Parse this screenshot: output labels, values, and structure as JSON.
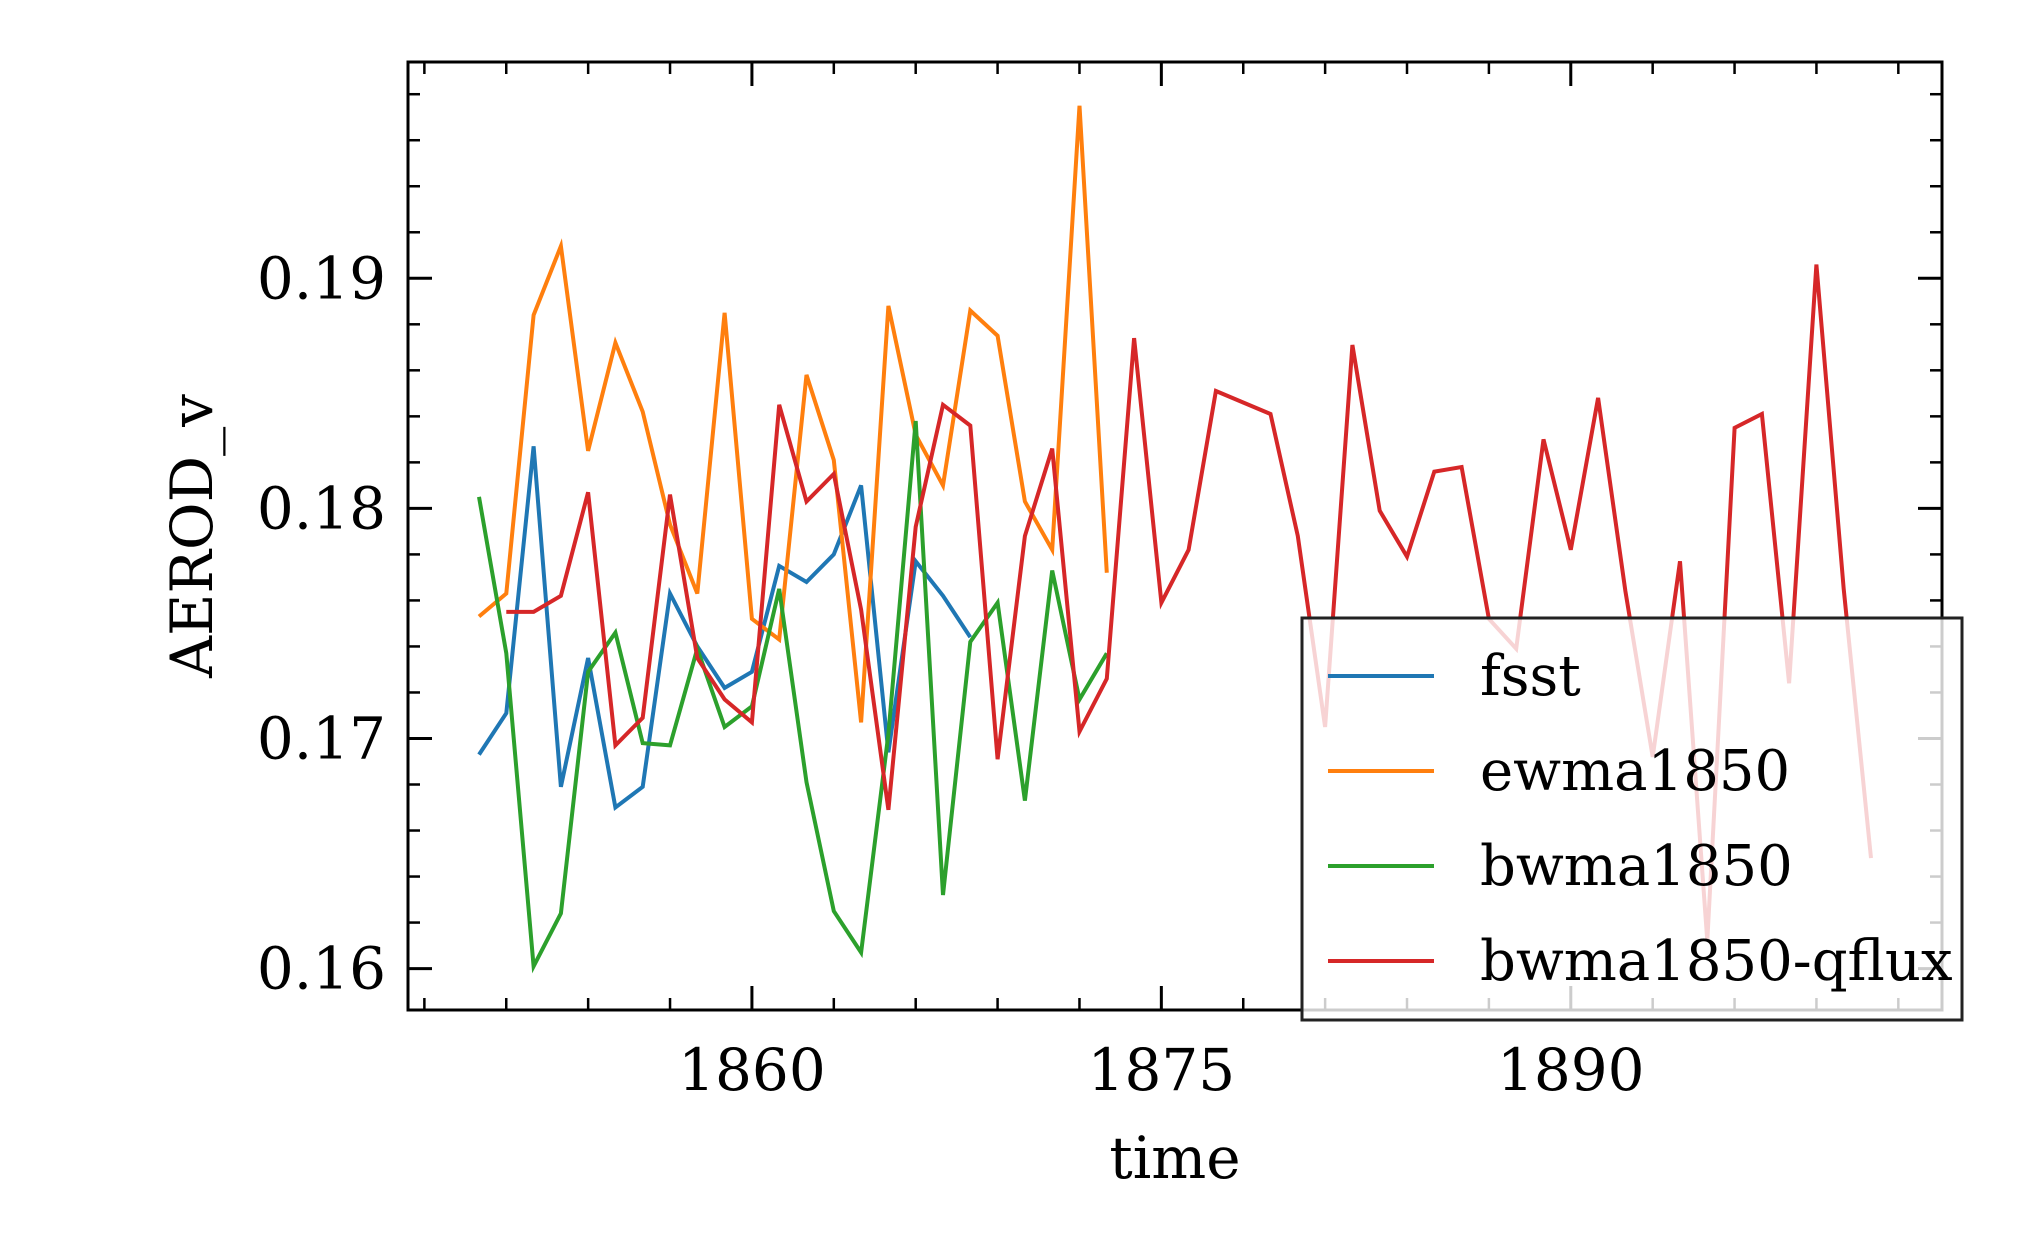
{
  "chart_data": {
    "type": "line",
    "xlabel": "time",
    "ylabel": "AEROD_v",
    "xlim": [
      1847.4,
      1903.6
    ],
    "ylim": [
      0.1582,
      0.1994
    ],
    "xticks": [
      1860,
      1875,
      1890
    ],
    "xtick_labels": [
      "1860",
      "1875",
      "1890"
    ],
    "yticks": [
      0.16,
      0.17,
      0.18,
      0.19
    ],
    "ytick_labels": [
      "0.16",
      "0.17",
      "0.18",
      "0.19"
    ],
    "grid": false,
    "legend_position": "lower-right",
    "series": [
      {
        "name": "fsst",
        "color": "#1f77b4",
        "x": [
          1850,
          1851,
          1852,
          1853,
          1854,
          1855,
          1856,
          1857,
          1858,
          1859,
          1860,
          1861,
          1862,
          1863,
          1864,
          1865,
          1866,
          1867,
          1868
        ],
        "y": [
          0.1693,
          0.1711,
          0.1827,
          0.1679,
          0.1735,
          0.167,
          0.1679,
          0.1763,
          0.174,
          0.1722,
          0.1729,
          0.1775,
          0.1768,
          0.178,
          0.181,
          0.1694,
          0.1777,
          0.1762,
          0.1744
        ]
      },
      {
        "name": "ewma1850",
        "color": "#ff7f0e",
        "x": [
          1850,
          1851,
          1852,
          1853,
          1854,
          1855,
          1856,
          1857,
          1858,
          1859,
          1860,
          1861,
          1862,
          1863,
          1864,
          1865,
          1866,
          1867,
          1868,
          1869,
          1870,
          1871,
          1872,
          1873
        ],
        "y": [
          0.1753,
          0.1763,
          0.1884,
          0.1914,
          0.1825,
          0.1872,
          0.1842,
          0.1793,
          0.1763,
          0.1885,
          0.1752,
          0.1743,
          0.1858,
          0.1821,
          0.1707,
          0.1888,
          0.1832,
          0.181,
          0.1886,
          0.1875,
          0.1803,
          0.1782,
          0.1975,
          0.1772
        ]
      },
      {
        "name": "bwma1850",
        "color": "#2ca02c",
        "x": [
          1850,
          1851,
          1852,
          1853,
          1854,
          1855,
          1856,
          1857,
          1858,
          1859,
          1860,
          1861,
          1862,
          1863,
          1864,
          1865,
          1866,
          1867,
          1868,
          1869,
          1870,
          1871,
          1872,
          1873
        ],
        "y": [
          0.1805,
          0.1737,
          0.1601,
          0.1624,
          0.1729,
          0.1746,
          0.1698,
          0.1697,
          0.1739,
          0.1705,
          0.1714,
          0.1765,
          0.1681,
          0.1625,
          0.1607,
          0.1702,
          0.1838,
          0.1632,
          0.1742,
          0.1759,
          0.1673,
          0.1773,
          0.1717,
          0.1737
        ]
      },
      {
        "name": "bwma1850-qflux",
        "color": "#d62728",
        "x": [
          1851,
          1852,
          1853,
          1854,
          1855,
          1856,
          1857,
          1858,
          1859,
          1860,
          1861,
          1862,
          1863,
          1864,
          1865,
          1866,
          1867,
          1868,
          1869,
          1870,
          1871,
          1872,
          1873,
          1874,
          1875,
          1876,
          1877,
          1878,
          1879,
          1880,
          1881,
          1882,
          1883,
          1884,
          1885,
          1886,
          1887,
          1888,
          1889,
          1890,
          1891,
          1892,
          1893,
          1894,
          1895,
          1896,
          1897,
          1898,
          1899,
          1900,
          1901
        ],
        "y": [
          0.1755,
          0.1755,
          0.1762,
          0.1807,
          0.1697,
          0.1709,
          0.1806,
          0.1735,
          0.1717,
          0.1707,
          0.1845,
          0.1803,
          0.1815,
          0.1756,
          0.1669,
          0.1792,
          0.1845,
          0.1836,
          0.1691,
          0.1788,
          0.1826,
          0.1703,
          0.1726,
          0.1874,
          0.1759,
          0.1782,
          0.1851,
          0.1846,
          0.1841,
          0.1788,
          0.1705,
          0.1871,
          0.1799,
          0.1779,
          0.1816,
          0.1818,
          0.1752,
          0.1739,
          0.183,
          0.1782,
          0.1848,
          0.1764,
          0.1692,
          0.1777,
          0.1612,
          0.1835,
          0.1841,
          0.1724,
          0.1906,
          0.1765,
          0.1648
        ]
      }
    ]
  }
}
